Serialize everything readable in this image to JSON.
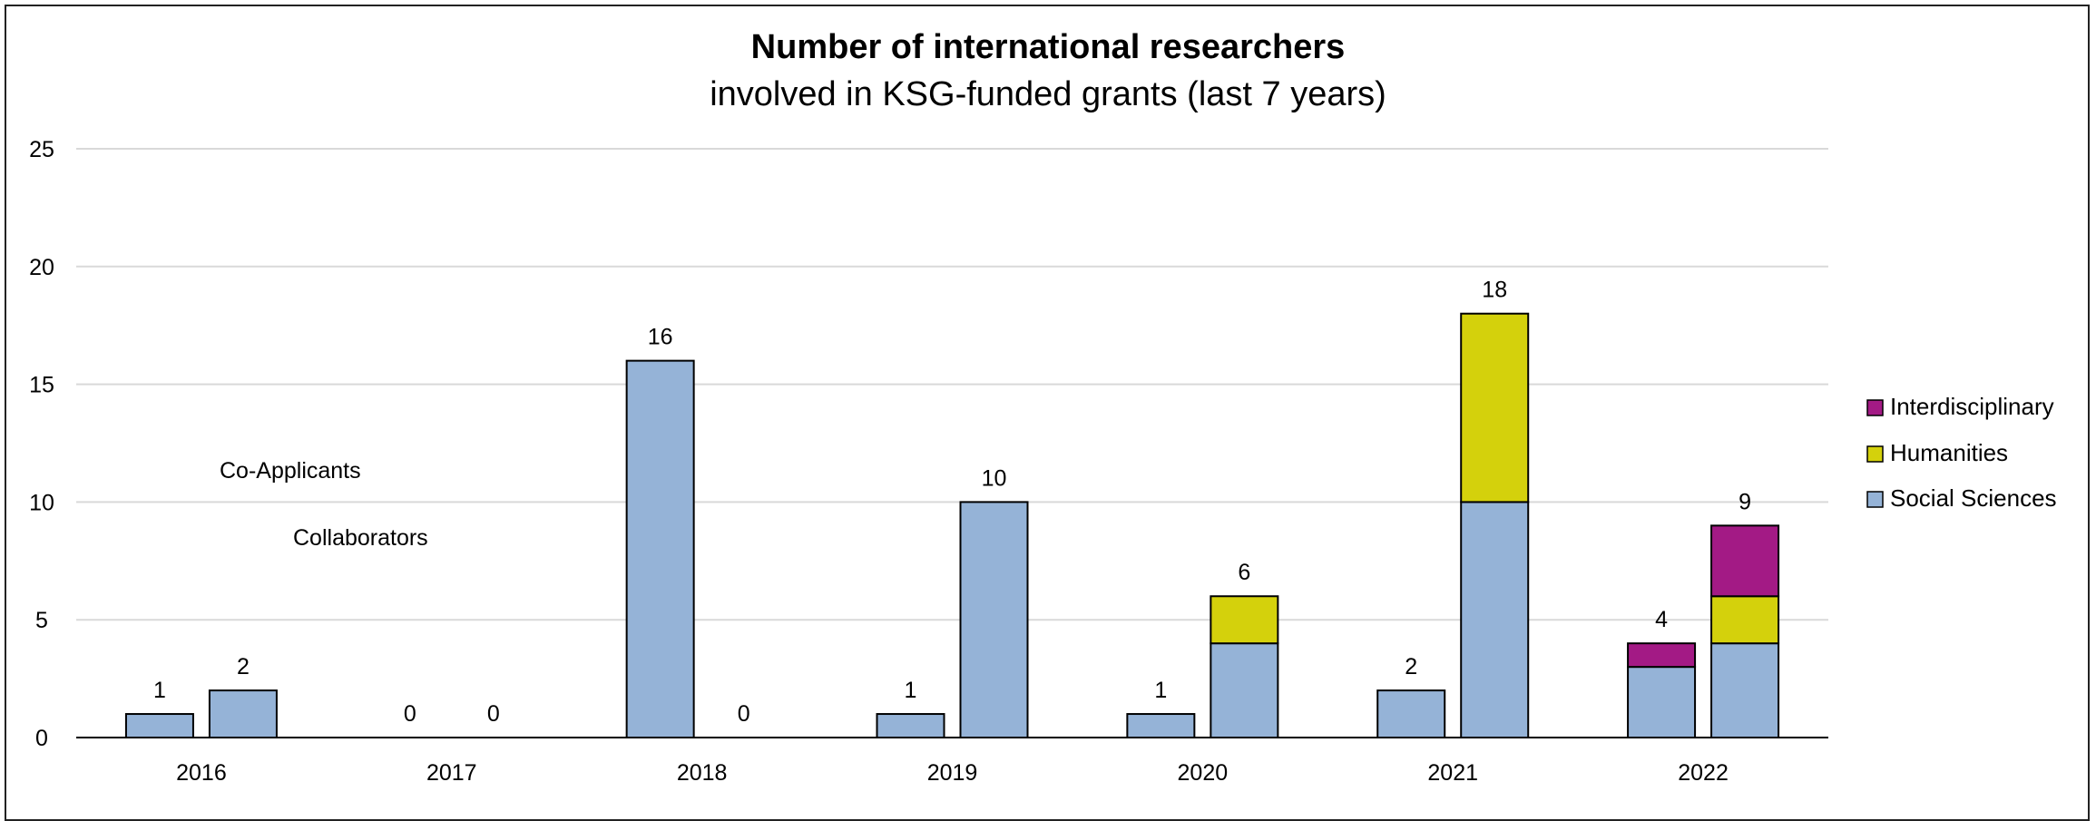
{
  "chart_data": {
    "type": "bar",
    "stacked": true,
    "title": "Number of international researchers",
    "subtitle": "involved in KSG-funded grants (last 7 years)",
    "xlabel": "",
    "ylabel": "",
    "ylim": [
      0,
      25
    ],
    "yticks": [
      0,
      5,
      10,
      15,
      20,
      25
    ],
    "grid": true,
    "legend_position": "right",
    "categories": [
      "2016",
      "2017",
      "2018",
      "2019",
      "2020",
      "2021",
      "2022"
    ],
    "bar_groups": [
      "Co-Applicants",
      "Collaborators"
    ],
    "series": [
      {
        "name": "Interdisciplinary",
        "color": "#a31a85",
        "values": {
          "Co-Applicants": [
            0,
            0,
            0,
            0,
            0,
            0,
            1
          ],
          "Collaborators": [
            0,
            0,
            0,
            0,
            0,
            0,
            3
          ]
        }
      },
      {
        "name": "Humanities",
        "color": "#d4d10c",
        "values": {
          "Co-Applicants": [
            0,
            0,
            0,
            0,
            0,
            0,
            0
          ],
          "Collaborators": [
            0,
            0,
            0,
            0,
            2,
            8,
            2
          ]
        }
      },
      {
        "name": "Social Sciences",
        "color": "#95b3d7",
        "values": {
          "Co-Applicants": [
            1,
            0,
            16,
            1,
            1,
            2,
            3
          ],
          "Collaborators": [
            2,
            0,
            0,
            10,
            4,
            10,
            4
          ]
        }
      }
    ],
    "totals": {
      "Co-Applicants": [
        "1",
        "0",
        "16",
        "1",
        "1",
        "2",
        "4"
      ],
      "Collaborators": [
        "2",
        "0",
        "0",
        "10",
        "6",
        "18",
        "9"
      ]
    },
    "annotations": [
      "Co-Applicants",
      "Collaborators"
    ]
  }
}
